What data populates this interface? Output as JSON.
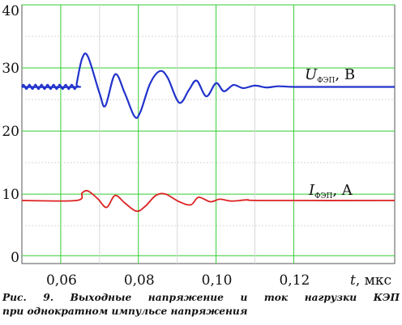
{
  "chart_data": {
    "type": "line",
    "xlim": [
      0.05,
      0.146
    ],
    "ylim": [
      -1,
      40
    ],
    "x_ticks": [
      "0,06",
      "0,08",
      "0,10",
      "0,12"
    ],
    "x_tick_values": [
      0.06,
      0.08,
      0.1,
      0.12
    ],
    "y_ticks": [
      "0",
      "10",
      "20",
      "30",
      "40"
    ],
    "y_tick_values": [
      0,
      10,
      20,
      30,
      40
    ],
    "xlabel_var": "t",
    "xlabel_unit": ", мкс",
    "grid": true,
    "series": [
      {
        "name_var": "U",
        "name_sub": "ФЭП",
        "name_unit": ", B",
        "color": "#2233cc",
        "x": [
          0.05,
          0.064,
          0.0641,
          0.0655,
          0.067,
          0.07,
          0.0715,
          0.074,
          0.0765,
          0.079,
          0.0805,
          0.083,
          0.0855,
          0.0875,
          0.0905,
          0.093,
          0.095,
          0.0975,
          0.1,
          0.102,
          0.1045,
          0.107,
          0.11,
          0.113,
          0.116,
          0.12,
          0.13,
          0.146
        ],
        "y": [
          27,
          27,
          27.5,
          31.5,
          31.8,
          26,
          24,
          29,
          26,
          22.3,
          23,
          27.5,
          29.5,
          28.5,
          24.5,
          26.5,
          28,
          25.5,
          27.6,
          26.3,
          27.3,
          26.8,
          27.2,
          26.9,
          27.1,
          27,
          27,
          27
        ]
      },
      {
        "name_var": "I",
        "name_sub": "ФЭП",
        "name_unit": ", A",
        "color": "#dd2222",
        "x": [
          0.05,
          0.064,
          0.0655,
          0.067,
          0.0695,
          0.0718,
          0.074,
          0.0765,
          0.0795,
          0.0818,
          0.0845,
          0.087,
          0.0905,
          0.0935,
          0.0955,
          0.0985,
          0.101,
          0.104,
          0.108,
          0.112,
          0.146
        ],
        "y": [
          9,
          9,
          10.2,
          10.5,
          9.3,
          7.9,
          9.8,
          8.6,
          7.3,
          8.1,
          9.8,
          10,
          8.8,
          8.3,
          9.5,
          8.8,
          9.2,
          8.9,
          9.1,
          9,
          9
        ]
      }
    ]
  },
  "caption": {
    "line1": "Рис. 9. Выходные напряжение и ток нагрузки КЭП",
    "line2": "при однократном импульсе напряжения"
  }
}
